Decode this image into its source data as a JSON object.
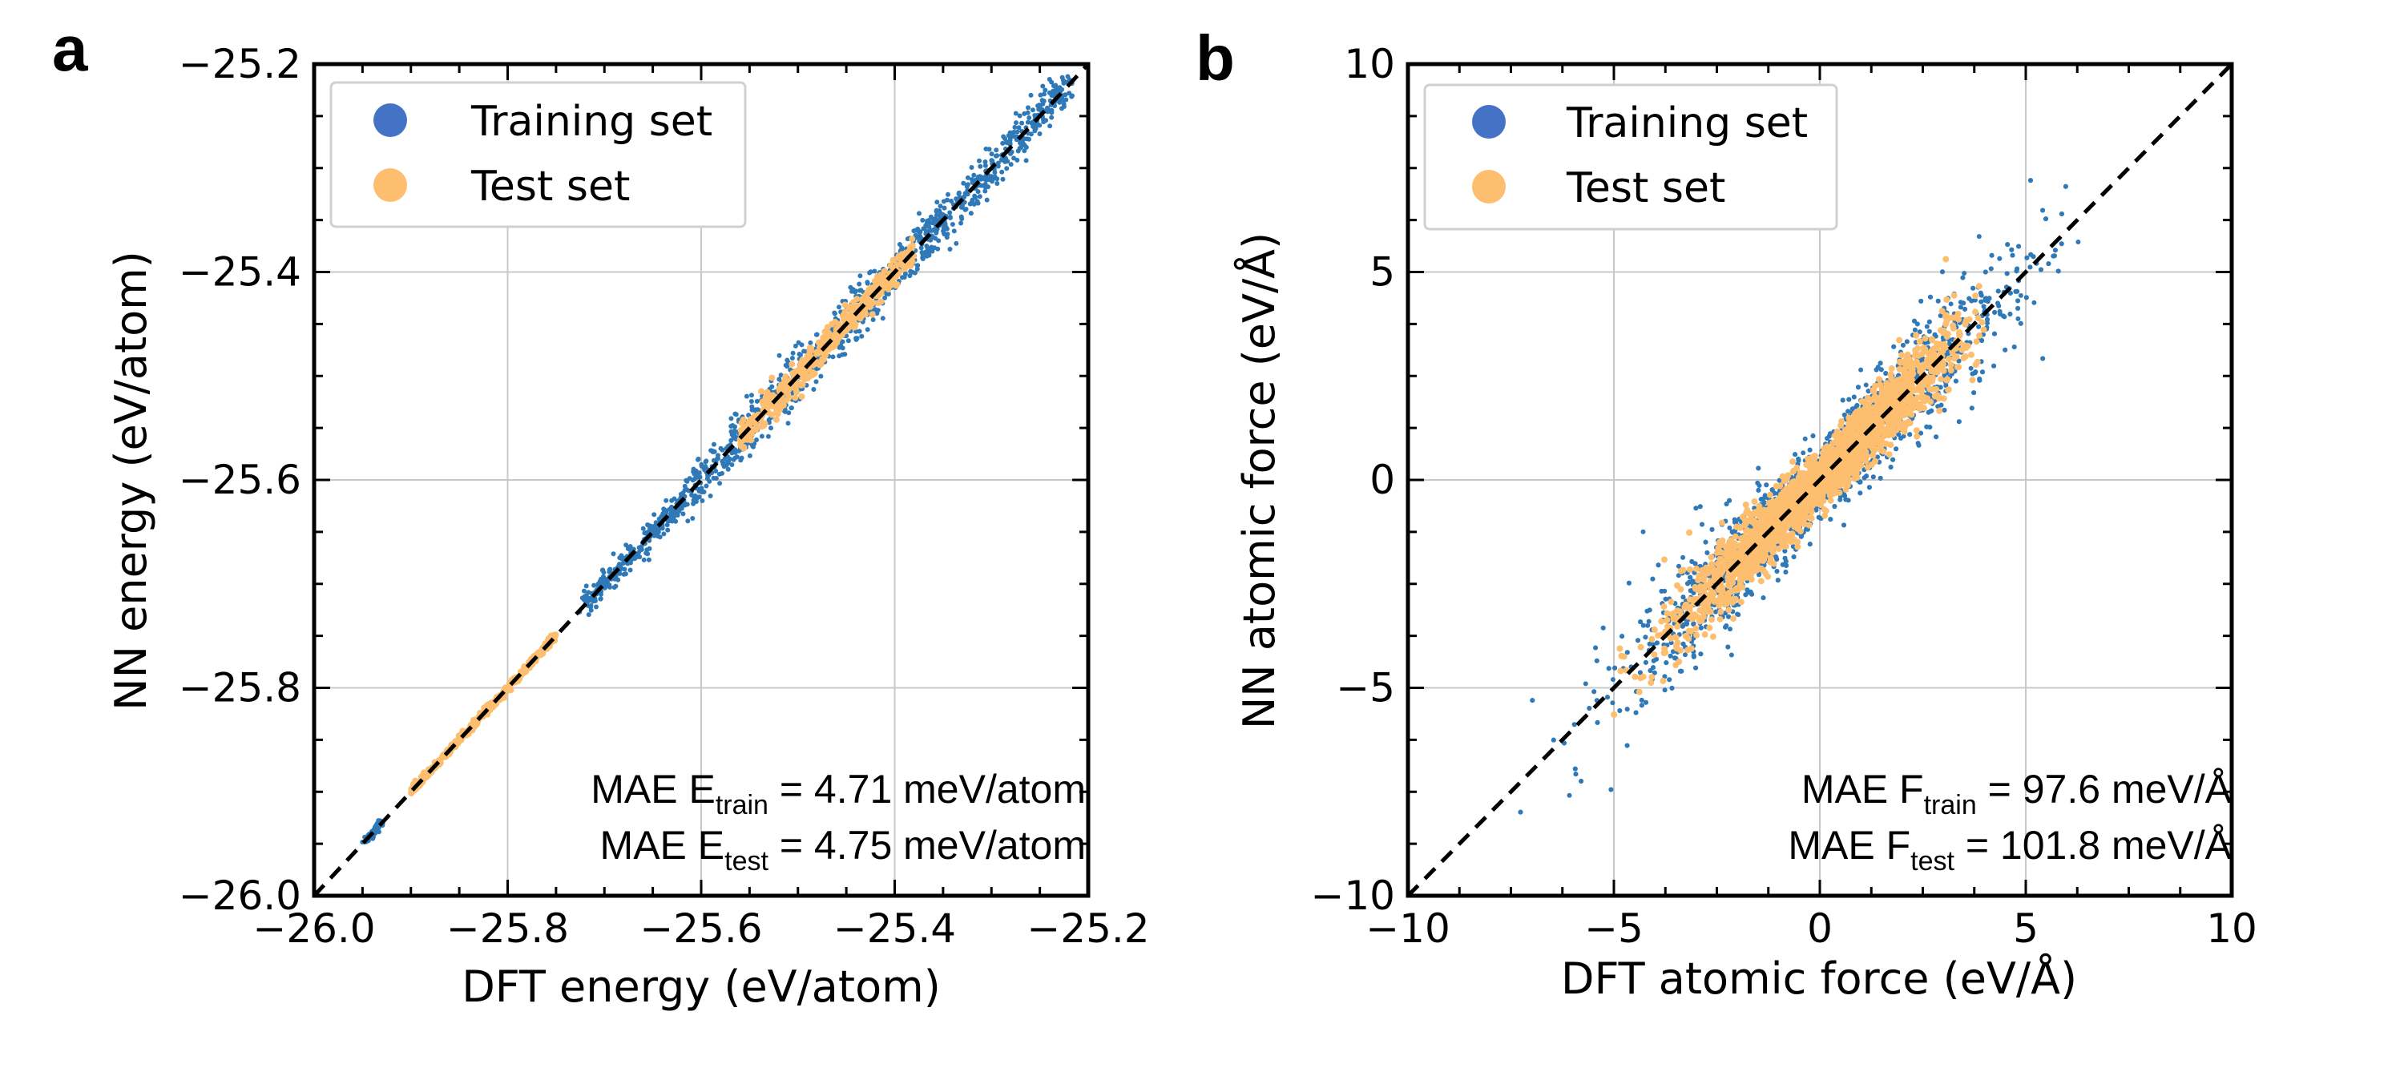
{
  "colors": {
    "train": "#2f79b8",
    "train_legend": "#4472c4",
    "test": "#fdbf6f",
    "grid": "#c8c8c8",
    "diag": "#000000"
  },
  "chart_data": [
    {
      "type": "scatter",
      "panel": "a",
      "xlabel": "DFT energy (eV/atom)",
      "ylabel": "NN energy (eV/atom)",
      "xlim": [
        -26.0,
        -25.2
      ],
      "ylim": [
        -26.0,
        -25.2
      ],
      "xticks": [
        -26.0,
        -25.8,
        -25.6,
        -25.4,
        -25.2
      ],
      "yticks": [
        -26.0,
        -25.8,
        -25.6,
        -25.4,
        -25.2
      ],
      "xtick_labels": [
        "−26.0",
        "−25.8",
        "−25.6",
        "−25.4",
        "−25.2"
      ],
      "ytick_labels": [
        "−26.0",
        "−25.8",
        "−25.6",
        "−25.4",
        "−25.2"
      ],
      "grid": true,
      "legend": {
        "position": "top-left",
        "entries": [
          "Training set",
          "Test set"
        ]
      },
      "annotation": {
        "lines": [
          {
            "prefix": "MAE  E",
            "sub": "train",
            "suffix": " = 4.71 meV/atom"
          },
          {
            "prefix": "MAE  E",
            "sub": "test",
            "suffix": "  = 4.75 meV/atom"
          }
        ],
        "position": "bottom-right"
      },
      "series": [
        {
          "name": "Training set",
          "segments": [
            [
              -25.95,
              -25.93,
              0.003
            ],
            [
              -25.72,
              -25.62,
              0.006
            ],
            [
              -25.62,
              -25.42,
              0.012
            ],
            [
              -25.42,
              -25.22,
              0.01
            ]
          ]
        },
        {
          "name": "Test set",
          "segments": [
            [
              -25.9,
              -25.75,
              0.002
            ],
            [
              -25.56,
              -25.38,
              0.007
            ]
          ]
        }
      ]
    },
    {
      "type": "scatter",
      "panel": "b",
      "xlabel": "DFT atomic force (eV/Å)",
      "ylabel": "NN atomic force (eV/Å)",
      "xlim": [
        -10,
        10
      ],
      "ylim": [
        -10,
        10
      ],
      "xticks": [
        -10,
        -5,
        0,
        5,
        10
      ],
      "yticks": [
        -10,
        -5,
        0,
        5,
        10
      ],
      "xtick_labels": [
        "−10",
        "−5",
        "0",
        "5",
        "10"
      ],
      "ytick_labels": [
        "−10",
        "−5",
        "0",
        "5",
        "10"
      ],
      "grid": true,
      "legend": {
        "position": "top-left",
        "entries": [
          "Training set",
          "Test set"
        ]
      },
      "annotation": {
        "lines": [
          {
            "prefix": "MAE  F",
            "sub": "train",
            "suffix": "  =  97.6 meV/Å"
          },
          {
            "prefix": "MAE  F",
            "sub": "test",
            "suffix": "   =  101.8 meV/Å"
          }
        ],
        "position": "bottom-right"
      },
      "series": [
        {
          "name": "Training set",
          "range": [
            -9,
            7
          ]
        },
        {
          "name": "Test set",
          "range": [
            -5,
            4
          ]
        }
      ]
    }
  ]
}
